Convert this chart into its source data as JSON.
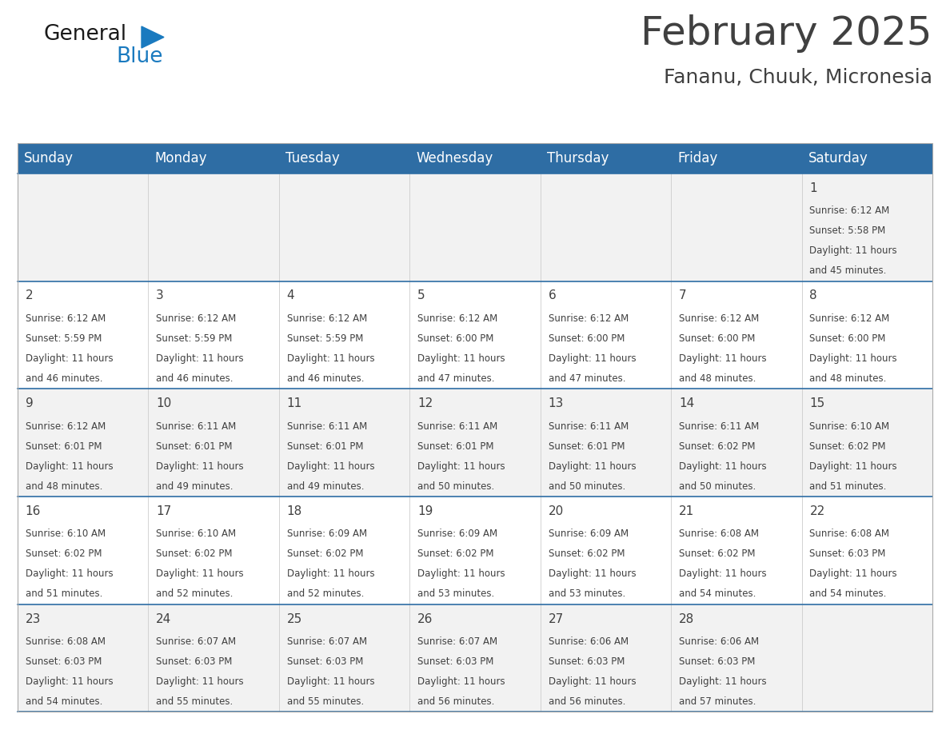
{
  "title": "February 2025",
  "subtitle": "Fananu, Chuuk, Micronesia",
  "header_color": "#2E6DA4",
  "header_text_color": "#FFFFFF",
  "days_of_week": [
    "Sunday",
    "Monday",
    "Tuesday",
    "Wednesday",
    "Thursday",
    "Friday",
    "Saturday"
  ],
  "bg_color": "#FFFFFF",
  "cell_bg_white": "#FFFFFF",
  "cell_bg_gray": "#F2F2F2",
  "separator_color": "#2E6DA4",
  "text_color": "#404040",
  "day_num_color": "#2E6DA4",
  "calendar_data": [
    [
      null,
      null,
      null,
      null,
      null,
      null,
      {
        "day": 1,
        "sunrise": "6:12 AM",
        "sunset": "5:58 PM",
        "daylight": "11 hours",
        "daylight2": "and 45 minutes."
      }
    ],
    [
      {
        "day": 2,
        "sunrise": "6:12 AM",
        "sunset": "5:59 PM",
        "daylight": "11 hours",
        "daylight2": "and 46 minutes."
      },
      {
        "day": 3,
        "sunrise": "6:12 AM",
        "sunset": "5:59 PM",
        "daylight": "11 hours",
        "daylight2": "and 46 minutes."
      },
      {
        "day": 4,
        "sunrise": "6:12 AM",
        "sunset": "5:59 PM",
        "daylight": "11 hours",
        "daylight2": "and 46 minutes."
      },
      {
        "day": 5,
        "sunrise": "6:12 AM",
        "sunset": "6:00 PM",
        "daylight": "11 hours",
        "daylight2": "and 47 minutes."
      },
      {
        "day": 6,
        "sunrise": "6:12 AM",
        "sunset": "6:00 PM",
        "daylight": "11 hours",
        "daylight2": "and 47 minutes."
      },
      {
        "day": 7,
        "sunrise": "6:12 AM",
        "sunset": "6:00 PM",
        "daylight": "11 hours",
        "daylight2": "and 48 minutes."
      },
      {
        "day": 8,
        "sunrise": "6:12 AM",
        "sunset": "6:00 PM",
        "daylight": "11 hours",
        "daylight2": "and 48 minutes."
      }
    ],
    [
      {
        "day": 9,
        "sunrise": "6:12 AM",
        "sunset": "6:01 PM",
        "daylight": "11 hours",
        "daylight2": "and 48 minutes."
      },
      {
        "day": 10,
        "sunrise": "6:11 AM",
        "sunset": "6:01 PM",
        "daylight": "11 hours",
        "daylight2": "and 49 minutes."
      },
      {
        "day": 11,
        "sunrise": "6:11 AM",
        "sunset": "6:01 PM",
        "daylight": "11 hours",
        "daylight2": "and 49 minutes."
      },
      {
        "day": 12,
        "sunrise": "6:11 AM",
        "sunset": "6:01 PM",
        "daylight": "11 hours",
        "daylight2": "and 50 minutes."
      },
      {
        "day": 13,
        "sunrise": "6:11 AM",
        "sunset": "6:01 PM",
        "daylight": "11 hours",
        "daylight2": "and 50 minutes."
      },
      {
        "day": 14,
        "sunrise": "6:11 AM",
        "sunset": "6:02 PM",
        "daylight": "11 hours",
        "daylight2": "and 50 minutes."
      },
      {
        "day": 15,
        "sunrise": "6:10 AM",
        "sunset": "6:02 PM",
        "daylight": "11 hours",
        "daylight2": "and 51 minutes."
      }
    ],
    [
      {
        "day": 16,
        "sunrise": "6:10 AM",
        "sunset": "6:02 PM",
        "daylight": "11 hours",
        "daylight2": "and 51 minutes."
      },
      {
        "day": 17,
        "sunrise": "6:10 AM",
        "sunset": "6:02 PM",
        "daylight": "11 hours",
        "daylight2": "and 52 minutes."
      },
      {
        "day": 18,
        "sunrise": "6:09 AM",
        "sunset": "6:02 PM",
        "daylight": "11 hours",
        "daylight2": "and 52 minutes."
      },
      {
        "day": 19,
        "sunrise": "6:09 AM",
        "sunset": "6:02 PM",
        "daylight": "11 hours",
        "daylight2": "and 53 minutes."
      },
      {
        "day": 20,
        "sunrise": "6:09 AM",
        "sunset": "6:02 PM",
        "daylight": "11 hours",
        "daylight2": "and 53 minutes."
      },
      {
        "day": 21,
        "sunrise": "6:08 AM",
        "sunset": "6:02 PM",
        "daylight": "11 hours",
        "daylight2": "and 54 minutes."
      },
      {
        "day": 22,
        "sunrise": "6:08 AM",
        "sunset": "6:03 PM",
        "daylight": "11 hours",
        "daylight2": "and 54 minutes."
      }
    ],
    [
      {
        "day": 23,
        "sunrise": "6:08 AM",
        "sunset": "6:03 PM",
        "daylight": "11 hours",
        "daylight2": "and 54 minutes."
      },
      {
        "day": 24,
        "sunrise": "6:07 AM",
        "sunset": "6:03 PM",
        "daylight": "11 hours",
        "daylight2": "and 55 minutes."
      },
      {
        "day": 25,
        "sunrise": "6:07 AM",
        "sunset": "6:03 PM",
        "daylight": "11 hours",
        "daylight2": "and 55 minutes."
      },
      {
        "day": 26,
        "sunrise": "6:07 AM",
        "sunset": "6:03 PM",
        "daylight": "11 hours",
        "daylight2": "and 56 minutes."
      },
      {
        "day": 27,
        "sunrise": "6:06 AM",
        "sunset": "6:03 PM",
        "daylight": "11 hours",
        "daylight2": "and 56 minutes."
      },
      {
        "day": 28,
        "sunrise": "6:06 AM",
        "sunset": "6:03 PM",
        "daylight": "11 hours",
        "daylight2": "and 57 minutes."
      },
      null
    ]
  ],
  "logo_color_general": "#1a1a1a",
  "logo_color_blue": "#1a7abf",
  "logo_tri_color": "#1a7abf",
  "title_fontsize": 36,
  "subtitle_fontsize": 18,
  "header_fontsize": 12,
  "day_num_fontsize": 11,
  "cell_fontsize": 8.5
}
